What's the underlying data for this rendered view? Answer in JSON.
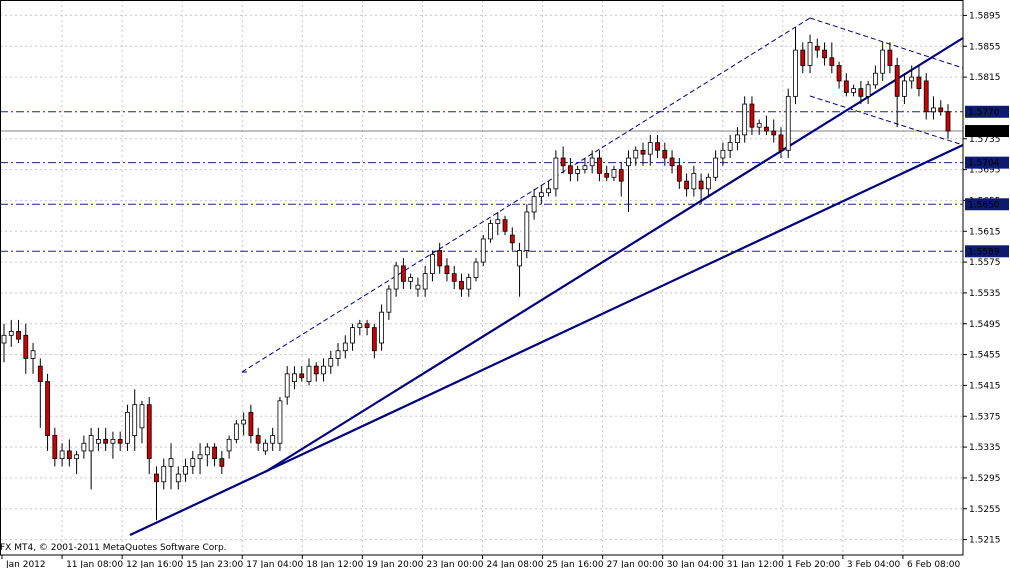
{
  "chart_data": {
    "type": "candlestick",
    "title": "",
    "copyright": "FX MT4, © 2001-2011 MetaQuotes Software Corp.",
    "colors": {
      "bull_body": "#ffffff",
      "bear_body": "#cc0000",
      "wick": "#000000",
      "trendline": "#000080",
      "hline": "#1a237e",
      "grid": "#c8c8c8"
    },
    "grid": true,
    "ylim": [
      1.5195,
      1.5915
    ],
    "y_ticks": [
      "1.5895",
      "1.5855",
      "1.5815",
      "1.5735",
      "1.5695",
      "1.5655",
      "1.5615",
      "1.5575",
      "1.5535",
      "1.5495",
      "1.5455",
      "1.5415",
      "1.5375",
      "1.5335",
      "1.5295",
      "1.5255",
      "1.5215"
    ],
    "x_ticks": [
      "Jan 2012",
      "11 Jan 08:00",
      "12 Jan 16:00",
      "15 Jan 23:00",
      "17 Jan 04:00",
      "18 Jan 12:00",
      "19 Jan 20:00",
      "23 Jan 00:00",
      "24 Jan 08:00",
      "25 Jan 16:00",
      "27 Jan 00:00",
      "30 Jan 04:00",
      "31 Jan 12:00",
      "1 Feb 20:00",
      "3 Feb 04:00",
      "6 Feb 08:00"
    ],
    "price_labels": [
      {
        "value": "1.5770",
        "style": "line"
      },
      {
        "value": "1.5745",
        "style": "current"
      },
      {
        "value": "1.5704",
        "style": "line"
      },
      {
        "value": "1.5650",
        "style": "line"
      },
      {
        "value": "1.5589",
        "style": "line"
      }
    ],
    "candles": [
      [
        1.547,
        1.5495,
        1.5445,
        1.548
      ],
      [
        1.548,
        1.55,
        1.5465,
        1.5485
      ],
      [
        1.5485,
        1.55,
        1.547,
        1.5475
      ],
      [
        1.548,
        1.5495,
        1.543,
        1.545
      ],
      [
        1.545,
        1.547,
        1.543,
        1.546
      ],
      [
        1.544,
        1.545,
        1.536,
        1.542
      ],
      [
        1.542,
        1.543,
        1.533,
        1.535
      ],
      [
        1.535,
        1.536,
        1.531,
        1.532
      ],
      [
        1.532,
        1.534,
        1.531,
        1.533
      ],
      [
        1.533,
        1.5345,
        1.531,
        1.532
      ],
      [
        1.532,
        1.533,
        1.53,
        1.5325
      ],
      [
        1.533,
        1.535,
        1.532,
        1.534
      ],
      [
        1.533,
        1.536,
        1.528,
        1.535
      ],
      [
        1.534,
        1.536,
        1.533,
        1.5345
      ],
      [
        1.5345,
        1.536,
        1.533,
        1.534
      ],
      [
        1.534,
        1.5355,
        1.532,
        1.5345
      ],
      [
        1.5345,
        1.5355,
        1.533,
        1.534
      ],
      [
        1.534,
        1.539,
        1.533,
        1.538
      ],
      [
        1.535,
        1.541,
        1.533,
        1.539
      ],
      [
        1.536,
        1.5395,
        1.534,
        1.539
      ],
      [
        1.539,
        1.54,
        1.53,
        1.532
      ],
      [
        1.53,
        1.531,
        1.524,
        1.529
      ],
      [
        1.529,
        1.532,
        1.528,
        1.531
      ],
      [
        1.531,
        1.534,
        1.528,
        1.532
      ],
      [
        1.529,
        1.531,
        1.528,
        1.53
      ],
      [
        1.53,
        1.532,
        1.529,
        1.531
      ],
      [
        1.531,
        1.533,
        1.53,
        1.532
      ],
      [
        1.532,
        1.534,
        1.53,
        1.5325
      ],
      [
        1.5325,
        1.534,
        1.531,
        1.5335
      ],
      [
        1.5335,
        1.534,
        1.531,
        1.532
      ],
      [
        1.532,
        1.533,
        1.53,
        1.531
      ],
      [
        1.533,
        1.535,
        1.532,
        1.5345
      ],
      [
        1.5345,
        1.537,
        1.534,
        1.5365
      ],
      [
        1.5365,
        1.538,
        1.535,
        1.537
      ],
      [
        1.538,
        1.539,
        1.534,
        1.535
      ],
      [
        1.535,
        1.536,
        1.533,
        1.534
      ],
      [
        1.533,
        1.5345,
        1.5325,
        1.534
      ],
      [
        1.534,
        1.536,
        1.533,
        1.535
      ],
      [
        1.534,
        1.54,
        1.533,
        1.5395
      ],
      [
        1.54,
        1.544,
        1.539,
        1.543
      ],
      [
        1.542,
        1.544,
        1.541,
        1.543
      ],
      [
        1.543,
        1.544,
        1.542,
        1.5425
      ],
      [
        1.542,
        1.545,
        1.5415,
        1.544
      ],
      [
        1.544,
        1.5445,
        1.542,
        1.543
      ],
      [
        1.543,
        1.545,
        1.542,
        1.544
      ],
      [
        1.544,
        1.546,
        1.543,
        1.545
      ],
      [
        1.545,
        1.547,
        1.544,
        1.546
      ],
      [
        1.546,
        1.548,
        1.545,
        1.547
      ],
      [
        1.547,
        1.5495,
        1.546,
        1.549
      ],
      [
        1.549,
        1.55,
        1.548,
        1.5495
      ],
      [
        1.5495,
        1.55,
        1.548,
        1.549
      ],
      [
        1.549,
        1.5495,
        1.545,
        1.546
      ],
      [
        1.547,
        1.552,
        1.546,
        1.551
      ],
      [
        1.551,
        1.5545,
        1.55,
        1.554
      ],
      [
        1.554,
        1.5575,
        1.553,
        1.557
      ],
      [
        1.557,
        1.558,
        1.554,
        1.555
      ],
      [
        1.555,
        1.556,
        1.554,
        1.5555
      ],
      [
        1.554,
        1.5555,
        1.553,
        1.5545
      ],
      [
        1.554,
        1.557,
        1.553,
        1.556
      ],
      [
        1.556,
        1.559,
        1.555,
        1.5585
      ],
      [
        1.559,
        1.56,
        1.556,
        1.557
      ],
      [
        1.557,
        1.558,
        1.555,
        1.556
      ],
      [
        1.556,
        1.557,
        1.554,
        1.555
      ],
      [
        1.555,
        1.556,
        1.553,
        1.554
      ],
      [
        1.554,
        1.556,
        1.553,
        1.5555
      ],
      [
        1.5555,
        1.558,
        1.555,
        1.5575
      ],
      [
        1.5575,
        1.561,
        1.557,
        1.5605
      ],
      [
        1.5605,
        1.563,
        1.56,
        1.5625
      ],
      [
        1.5625,
        1.564,
        1.561,
        1.563
      ],
      [
        1.563,
        1.5635,
        1.561,
        1.5615
      ],
      [
        1.561,
        1.562,
        1.559,
        1.56
      ],
      [
        1.557,
        1.56,
        1.553,
        1.559
      ],
      [
        1.559,
        1.565,
        1.558,
        1.564
      ],
      [
        1.564,
        1.567,
        1.563,
        1.566
      ],
      [
        1.566,
        1.5675,
        1.565,
        1.5665
      ],
      [
        1.5665,
        1.568,
        1.566,
        1.567
      ],
      [
        1.567,
        1.572,
        1.566,
        1.571
      ],
      [
        1.571,
        1.5725,
        1.569,
        1.57
      ],
      [
        1.57,
        1.571,
        1.568,
        1.569
      ],
      [
        1.569,
        1.57,
        1.568,
        1.5695
      ],
      [
        1.5695,
        1.571,
        1.569,
        1.57
      ],
      [
        1.57,
        1.572,
        1.569,
        1.571
      ],
      [
        1.571,
        1.572,
        1.568,
        1.569
      ],
      [
        1.569,
        1.57,
        1.568,
        1.5685
      ],
      [
        1.5685,
        1.57,
        1.568,
        1.5695
      ],
      [
        1.5695,
        1.5705,
        1.566,
        1.568
      ],
      [
        1.57,
        1.572,
        1.564,
        1.571
      ],
      [
        1.571,
        1.5725,
        1.57,
        1.572
      ],
      [
        1.572,
        1.573,
        1.57,
        1.5715
      ],
      [
        1.5715,
        1.574,
        1.57,
        1.573
      ],
      [
        1.573,
        1.574,
        1.571,
        1.572
      ],
      [
        1.572,
        1.573,
        1.57,
        1.571
      ],
      [
        1.571,
        1.572,
        1.569,
        1.57
      ],
      [
        1.57,
        1.571,
        1.567,
        1.568
      ],
      [
        1.568,
        1.569,
        1.566,
        1.567
      ],
      [
        1.567,
        1.57,
        1.566,
        1.569
      ],
      [
        1.568,
        1.569,
        1.565,
        1.567
      ],
      [
        1.567,
        1.569,
        1.566,
        1.5685
      ],
      [
        1.5685,
        1.572,
        1.568,
        1.571
      ],
      [
        1.571,
        1.573,
        1.57,
        1.572
      ],
      [
        1.572,
        1.574,
        1.571,
        1.573
      ],
      [
        1.573,
        1.575,
        1.572,
        1.574
      ],
      [
        1.574,
        1.579,
        1.573,
        1.578
      ],
      [
        1.578,
        1.579,
        1.574,
        1.575
      ],
      [
        1.575,
        1.576,
        1.574,
        1.5755
      ],
      [
        1.575,
        1.5765,
        1.574,
        1.5745
      ],
      [
        1.5745,
        1.576,
        1.573,
        1.574
      ],
      [
        1.574,
        1.575,
        1.571,
        1.572
      ],
      [
        1.572,
        1.58,
        1.571,
        1.579
      ],
      [
        1.579,
        1.588,
        1.578,
        1.585
      ],
      [
        1.585,
        1.586,
        1.582,
        1.583
      ],
      [
        1.583,
        1.587,
        1.582,
        1.586
      ],
      [
        1.5855,
        1.5865,
        1.584,
        1.585
      ],
      [
        1.585,
        1.586,
        1.583,
        1.584
      ],
      [
        1.584,
        1.586,
        1.582,
        1.583
      ],
      [
        1.583,
        1.5835,
        1.58,
        1.581
      ],
      [
        1.581,
        1.582,
        1.579,
        1.5795
      ],
      [
        1.5795,
        1.5805,
        1.579,
        1.58
      ],
      [
        1.58,
        1.581,
        1.578,
        1.579
      ],
      [
        1.579,
        1.581,
        1.578,
        1.5805
      ],
      [
        1.5805,
        1.583,
        1.58,
        1.582
      ],
      [
        1.582,
        1.586,
        1.581,
        1.585
      ],
      [
        1.585,
        1.586,
        1.582,
        1.583
      ],
      [
        1.583,
        1.584,
        1.575,
        1.579
      ],
      [
        1.579,
        1.582,
        1.578,
        1.581
      ],
      [
        1.581,
        1.583,
        1.58,
        1.5815
      ],
      [
        1.5815,
        1.583,
        1.579,
        1.58
      ],
      [
        1.581,
        1.582,
        1.576,
        1.577
      ],
      [
        1.577,
        1.579,
        1.576,
        1.5775
      ],
      [
        1.5775,
        1.5785,
        1.5765,
        1.577
      ],
      [
        1.577,
        1.578,
        1.5735,
        1.5745
      ]
    ]
  }
}
